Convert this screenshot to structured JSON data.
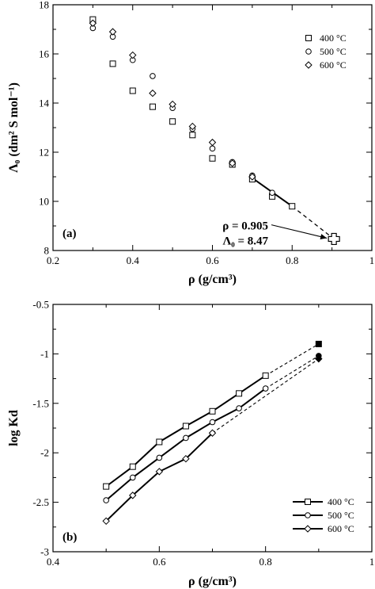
{
  "chart_data": [
    {
      "type": "scatter",
      "panel_label": "(a)",
      "xlabel": "ρ (g/cm³)",
      "ylabel": "Λ₀ (dm² S mol⁻¹)",
      "xlim": [
        0.2,
        1.0
      ],
      "ylim": [
        8,
        18
      ],
      "xticks": [
        0.2,
        0.4,
        0.6,
        0.8,
        1.0
      ],
      "xtick_labels": [
        "0.2",
        "0.4",
        "0.6",
        "0.8",
        "1"
      ],
      "yticks": [
        8,
        10,
        12,
        14,
        16,
        18
      ],
      "ytick_labels": [
        "8",
        "10",
        "12",
        "14",
        "16",
        "18"
      ],
      "legend_position": "top-right",
      "series": [
        {
          "name": "400 °C",
          "marker": "square",
          "x": [
            0.3,
            0.35,
            0.4,
            0.45,
            0.5,
            0.55,
            0.6,
            0.65,
            0.7,
            0.75,
            0.8
          ],
          "y": [
            17.4,
            15.6,
            14.5,
            13.85,
            13.25,
            12.7,
            11.75,
            11.5,
            10.9,
            10.2,
            9.8
          ]
        },
        {
          "name": "500 °C",
          "marker": "circle",
          "x": [
            0.3,
            0.35,
            0.4,
            0.45,
            0.5,
            0.55,
            0.6,
            0.65,
            0.7,
            0.75
          ],
          "y": [
            17.05,
            16.7,
            15.75,
            15.1,
            13.8,
            12.95,
            12.15,
            11.6,
            11.05,
            10.35
          ]
        },
        {
          "name": "600 °C",
          "marker": "diamond",
          "x": [
            0.3,
            0.35,
            0.4,
            0.45,
            0.5,
            0.55,
            0.6,
            0.65,
            0.7
          ],
          "y": [
            17.25,
            16.9,
            15.95,
            14.4,
            13.95,
            13.05,
            12.4,
            11.55,
            11.0
          ]
        }
      ],
      "fit_line": {
        "solid_x": [
          0.7,
          0.8
        ],
        "solid_y": [
          10.95,
          9.8
        ],
        "dashed_x": [
          0.8,
          0.905
        ],
        "dashed_y": [
          9.8,
          8.47
        ]
      },
      "extrapolated_point": {
        "x": 0.905,
        "y": 8.47,
        "marker": "cross"
      },
      "annotation": {
        "line1": "ρ = 0.905",
        "line2": "Λ₀ = 8.47",
        "text_at": [
          0.74,
          8.85
        ]
      }
    },
    {
      "type": "line",
      "panel_label": "(b)",
      "xlabel": "ρ (g/cm³)",
      "ylabel": "log Kd",
      "xlim": [
        0.4,
        1.0
      ],
      "ylim": [
        -3,
        -0.5
      ],
      "xticks": [
        0.4,
        0.6,
        0.8,
        1.0
      ],
      "xtick_labels": [
        "0.4",
        "0.6",
        "0.8",
        "1"
      ],
      "yticks": [
        -3,
        -2.5,
        -2,
        -1.5,
        -1,
        -0.5
      ],
      "ytick_labels": [
        "-3",
        "-2.5",
        "-2",
        "-1.5",
        "-1",
        "-0.5"
      ],
      "legend_position": "bottom-right",
      "series": [
        {
          "name": "400 °C",
          "marker": "square",
          "x": [
            0.5,
            0.55,
            0.6,
            0.65,
            0.7,
            0.75,
            0.8
          ],
          "y": [
            -2.34,
            -2.14,
            -1.89,
            -1.73,
            -1.58,
            -1.4,
            -1.22
          ],
          "extrapolated": {
            "x": 0.9,
            "y": -0.9
          }
        },
        {
          "name": "500 °C",
          "marker": "circle",
          "x": [
            0.5,
            0.55,
            0.6,
            0.65,
            0.7,
            0.75,
            0.8
          ],
          "y": [
            -2.48,
            -2.25,
            -2.05,
            -1.85,
            -1.69,
            -1.55,
            -1.35
          ],
          "extrapolated": {
            "x": 0.9,
            "y": -1.02
          }
        },
        {
          "name": "600 °C",
          "marker": "diamond",
          "x": [
            0.5,
            0.55,
            0.6,
            0.65,
            0.7
          ],
          "y": [
            -2.69,
            -2.43,
            -2.19,
            -2.06,
            -1.8
          ],
          "extrapolated": {
            "x": 0.9,
            "y": -1.05
          }
        }
      ]
    }
  ]
}
